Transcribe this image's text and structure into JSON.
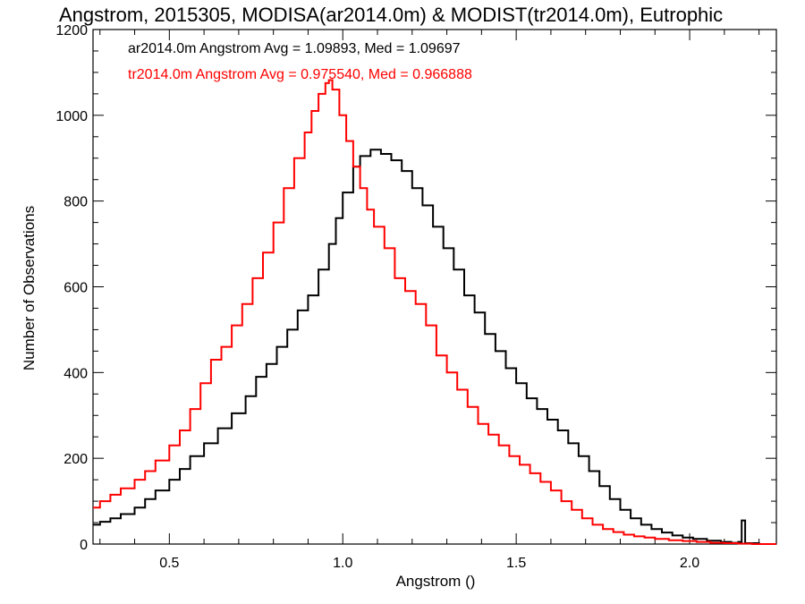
{
  "chart_data": {
    "type": "line",
    "title": "Angstrom, 2015305, MODISA(ar2014.0m) & MODIST(tr2014.0m), Eutrophic",
    "xlabel": "Angstrom ()",
    "ylabel": "Number of Observations",
    "xlim": [
      0.28,
      2.25
    ],
    "ylim": [
      0,
      1200
    ],
    "x_ticks": [
      "0.5",
      "1.0",
      "1.5",
      "2.0"
    ],
    "y_ticks": [
      "0",
      "200",
      "400",
      "600",
      "800",
      "1000",
      "1200"
    ],
    "grid": false,
    "legend_position": "top-left",
    "legend": [
      {
        "text": "ar2014.0m Angstrom Avg = 1.09893, Med = 1.09697",
        "color": "#000000"
      },
      {
        "text": "tr2014.0m Angstrom Avg = 0.975540, Med = 0.966888",
        "color": "#ff0000"
      }
    ],
    "series": [
      {
        "color": "#000000",
        "points": [
          [
            0.28,
            45
          ],
          [
            0.3,
            52
          ],
          [
            0.33,
            60
          ],
          [
            0.36,
            70
          ],
          [
            0.4,
            85
          ],
          [
            0.43,
            105
          ],
          [
            0.46,
            125
          ],
          [
            0.5,
            150
          ],
          [
            0.53,
            175
          ],
          [
            0.56,
            205
          ],
          [
            0.6,
            235
          ],
          [
            0.64,
            270
          ],
          [
            0.68,
            305
          ],
          [
            0.72,
            345
          ],
          [
            0.75,
            390
          ],
          [
            0.78,
            420
          ],
          [
            0.81,
            460
          ],
          [
            0.84,
            500
          ],
          [
            0.87,
            545
          ],
          [
            0.9,
            580
          ],
          [
            0.93,
            640
          ],
          [
            0.96,
            700
          ],
          [
            0.98,
            760
          ],
          [
            1.0,
            820
          ],
          [
            1.03,
            880
          ],
          [
            1.05,
            905
          ],
          [
            1.08,
            920
          ],
          [
            1.11,
            910
          ],
          [
            1.14,
            895
          ],
          [
            1.17,
            870
          ],
          [
            1.2,
            830
          ],
          [
            1.23,
            790
          ],
          [
            1.26,
            740
          ],
          [
            1.29,
            690
          ],
          [
            1.32,
            640
          ],
          [
            1.35,
            580
          ],
          [
            1.38,
            540
          ],
          [
            1.41,
            490
          ],
          [
            1.44,
            450
          ],
          [
            1.47,
            410
          ],
          [
            1.5,
            375
          ],
          [
            1.53,
            340
          ],
          [
            1.56,
            315
          ],
          [
            1.59,
            290
          ],
          [
            1.62,
            265
          ],
          [
            1.65,
            235
          ],
          [
            1.68,
            205
          ],
          [
            1.71,
            170
          ],
          [
            1.74,
            135
          ],
          [
            1.77,
            105
          ],
          [
            1.8,
            80
          ],
          [
            1.83,
            60
          ],
          [
            1.86,
            45
          ],
          [
            1.89,
            35
          ],
          [
            1.92,
            27
          ],
          [
            1.95,
            20
          ],
          [
            1.98,
            15
          ],
          [
            2.01,
            12
          ],
          [
            2.05,
            8
          ],
          [
            2.09,
            5
          ],
          [
            2.12,
            3
          ],
          [
            2.14,
            5
          ],
          [
            2.15,
            55
          ],
          [
            2.16,
            2
          ],
          [
            2.2,
            0
          ],
          [
            2.25,
            0
          ]
        ]
      },
      {
        "color": "#ff0000",
        "points": [
          [
            0.28,
            85
          ],
          [
            0.3,
            100
          ],
          [
            0.33,
            115
          ],
          [
            0.36,
            130
          ],
          [
            0.4,
            150
          ],
          [
            0.43,
            170
          ],
          [
            0.46,
            195
          ],
          [
            0.5,
            230
          ],
          [
            0.53,
            265
          ],
          [
            0.56,
            315
          ],
          [
            0.59,
            375
          ],
          [
            0.62,
            430
          ],
          [
            0.65,
            460
          ],
          [
            0.68,
            510
          ],
          [
            0.71,
            560
          ],
          [
            0.74,
            620
          ],
          [
            0.77,
            680
          ],
          [
            0.8,
            750
          ],
          [
            0.83,
            830
          ],
          [
            0.86,
            900
          ],
          [
            0.89,
            960
          ],
          [
            0.91,
            1010
          ],
          [
            0.93,
            1050
          ],
          [
            0.95,
            1075
          ],
          [
            0.96,
            1082
          ],
          [
            0.97,
            1060
          ],
          [
            0.99,
            1000
          ],
          [
            1.01,
            940
          ],
          [
            1.03,
            880
          ],
          [
            1.05,
            830
          ],
          [
            1.07,
            780
          ],
          [
            1.09,
            740
          ],
          [
            1.12,
            690
          ],
          [
            1.15,
            620
          ],
          [
            1.18,
            590
          ],
          [
            1.21,
            560
          ],
          [
            1.24,
            510
          ],
          [
            1.27,
            440
          ],
          [
            1.3,
            400
          ],
          [
            1.33,
            360
          ],
          [
            1.36,
            320
          ],
          [
            1.39,
            280
          ],
          [
            1.42,
            255
          ],
          [
            1.45,
            230
          ],
          [
            1.48,
            205
          ],
          [
            1.51,
            185
          ],
          [
            1.54,
            165
          ],
          [
            1.57,
            145
          ],
          [
            1.6,
            125
          ],
          [
            1.63,
            100
          ],
          [
            1.66,
            80
          ],
          [
            1.69,
            60
          ],
          [
            1.72,
            45
          ],
          [
            1.75,
            35
          ],
          [
            1.78,
            28
          ],
          [
            1.81,
            22
          ],
          [
            1.84,
            18
          ],
          [
            1.87,
            15
          ],
          [
            1.9,
            12
          ],
          [
            1.94,
            9
          ],
          [
            1.98,
            7
          ],
          [
            2.02,
            5
          ],
          [
            2.06,
            3
          ],
          [
            2.1,
            2
          ],
          [
            2.14,
            1
          ],
          [
            2.18,
            0
          ],
          [
            2.25,
            0
          ]
        ]
      }
    ]
  }
}
